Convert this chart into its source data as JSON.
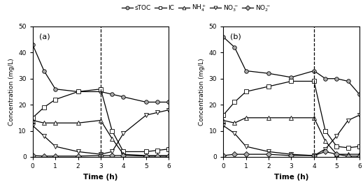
{
  "panel_a": {
    "label": "(a)",
    "vline_x": 3,
    "sTOC": {
      "x": [
        0,
        0.5,
        1,
        2,
        3,
        3.5,
        4,
        5,
        5.5,
        6
      ],
      "y": [
        43,
        33,
        26,
        25,
        25,
        24,
        23,
        21,
        21,
        21
      ]
    },
    "IC": {
      "x": [
        0,
        0.5,
        1,
        2,
        3,
        3.5,
        4,
        5,
        5.5,
        6
      ],
      "y": [
        15,
        19,
        22,
        25,
        26,
        10,
        2,
        2,
        2.5,
        3
      ]
    },
    "NH4": {
      "x": [
        0,
        0.5,
        1,
        2,
        3,
        3.5,
        4,
        5,
        5.5,
        6
      ],
      "y": [
        14,
        13,
        13,
        13,
        14,
        7,
        1,
        0.5,
        0.5,
        0.5
      ]
    },
    "NO3": {
      "x": [
        0,
        0.5,
        1,
        2,
        3,
        3.5,
        4,
        5,
        5.5,
        6
      ],
      "y": [
        12,
        8,
        4,
        2,
        1,
        2,
        9,
        16,
        17,
        18
      ]
    },
    "NO2": {
      "x": [
        0,
        0.5,
        1,
        2,
        3,
        3.5,
        4,
        5,
        5.5,
        6
      ],
      "y": [
        0.5,
        0.3,
        0.3,
        0.3,
        0.5,
        0.5,
        0.5,
        0.3,
        0.3,
        0.3
      ]
    }
  },
  "panel_b": {
    "label": "(b)",
    "vline_x": 4,
    "sTOC": {
      "x": [
        0,
        0.5,
        1,
        2,
        3,
        4,
        4.5,
        5,
        5.5,
        6
      ],
      "y": [
        46,
        42,
        33,
        32,
        30.5,
        33,
        30,
        30,
        29,
        24
      ]
    },
    "IC": {
      "x": [
        0,
        0.5,
        1,
        2,
        3,
        4,
        4.5,
        5,
        5.5,
        6
      ],
      "y": [
        16,
        21,
        25,
        27,
        29,
        29,
        10,
        4,
        3.5,
        4
      ]
    },
    "NH4": {
      "x": [
        0,
        0.5,
        1,
        2,
        3,
        4,
        4.5,
        5,
        5.5,
        6
      ],
      "y": [
        14,
        13,
        15,
        15,
        15,
        15,
        6,
        1,
        1,
        1
      ]
    },
    "NO3": {
      "x": [
        0,
        0.5,
        1,
        2,
        3,
        4,
        4.5,
        5,
        5.5,
        6
      ],
      "y": [
        12,
        9,
        4,
        2,
        1,
        0.5,
        3,
        8,
        14,
        16
      ]
    },
    "NO2": {
      "x": [
        0,
        0.5,
        1,
        2,
        3,
        4,
        4.5,
        5,
        5.5,
        6
      ],
      "y": [
        0.5,
        1,
        1,
        1,
        0.5,
        0.5,
        2,
        1,
        0.3,
        0.3
      ]
    }
  },
  "ylim": [
    0,
    50
  ],
  "yticks": [
    0,
    10,
    20,
    30,
    40,
    50
  ],
  "xlim": [
    0,
    6
  ],
  "xticks": [
    0,
    1,
    2,
    3,
    4,
    5,
    6
  ],
  "xlabel": "Time (h)",
  "ylabel": "Concentration (mg/L)",
  "legend_labels": [
    "sTOC",
    "IC",
    "NH$_4^+$",
    "NO$_3^-$",
    "NO$_2^-$"
  ],
  "line_color": "black",
  "markers": [
    "o",
    "s",
    "^",
    "v",
    "D"
  ],
  "markersize": 4,
  "linewidth": 0.9,
  "markerfacecolors": [
    "#aaaaaa",
    "white",
    "white",
    "white",
    "#aaaaaa"
  ],
  "series_keys": [
    "sTOC",
    "IC",
    "NH4",
    "NO3",
    "NO2"
  ]
}
